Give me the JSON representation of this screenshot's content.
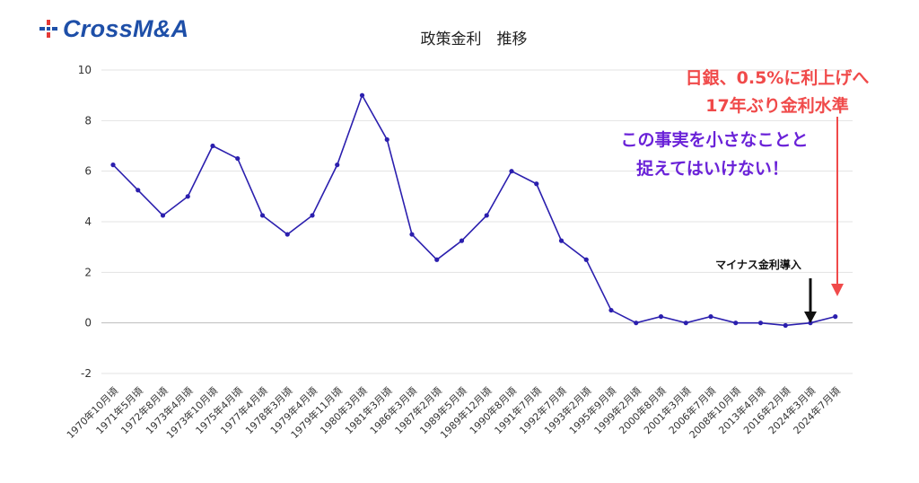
{
  "logo": {
    "text": "CrossM&A"
  },
  "colors": {
    "line": "#2b1fae",
    "brand": "#1e4fa8",
    "accent_red": "#f04a4a",
    "accent_purple": "#6a22d8"
  },
  "chart_data": {
    "type": "line",
    "title": "政策金利　推移",
    "xlabel": "",
    "ylabel": "",
    "ylim": [
      -2,
      10
    ],
    "yticks": [
      -2,
      0,
      2,
      4,
      6,
      8,
      10
    ],
    "grid": true,
    "categories": [
      "1970年10月頃",
      "1971年5月頃",
      "1972年8月頃",
      "1973年4月頃",
      "1973年10月頃",
      "1975年4月頃",
      "1977年4月頃",
      "1978年3月頃",
      "1979年4月頃",
      "1979年11月頃",
      "1980年3月頃",
      "1981年3月頃",
      "1986年3月頃",
      "1987年2月頃",
      "1989年5月頃",
      "1989年12月頃",
      "1990年8月頃",
      "1991年7月頃",
      "1992年7月頃",
      "1993年2月頃",
      "1995年9月頃",
      "1999年2月頃",
      "2000年8月頃",
      "2001年3月頃",
      "2006年7月頃",
      "2008年10月頃",
      "2013年4月頃",
      "2016年2月頃",
      "2024年3月頃",
      "2024年7月頃"
    ],
    "series": [
      {
        "values": [
          6.25,
          5.25,
          4.25,
          5.0,
          7.0,
          6.5,
          4.25,
          3.5,
          4.25,
          6.25,
          9.0,
          7.25,
          3.5,
          2.5,
          3.25,
          4.25,
          6.0,
          5.5,
          3.25,
          2.5,
          0.5,
          0.0,
          0.25,
          0.0,
          0.25,
          0.0,
          0.0,
          -0.1,
          0.0,
          0.25
        ]
      }
    ],
    "annotations": {
      "red_line1": "日銀、0.5%に利上げへ",
      "red_line2": "17年ぶり金利水準",
      "purple_line1": "この事実を小さなことと",
      "purple_line2": "捉えてはいけない！",
      "black_label": "マイナス金利導入"
    }
  }
}
